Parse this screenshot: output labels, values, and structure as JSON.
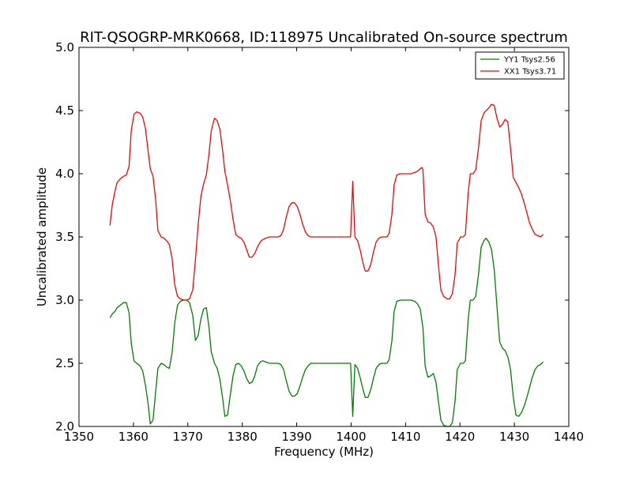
{
  "chart_data": {
    "type": "line",
    "title": "RIT-QSOGRP-MRK0668, ID:118975 Uncalibrated On-source spectrum",
    "xlabel": "Frequency (MHz)",
    "ylabel": "Uncalibrated amplitude",
    "xlim": [
      1350,
      1440
    ],
    "ylim": [
      2.0,
      5.0
    ],
    "xticks": [
      1350,
      1360,
      1370,
      1380,
      1390,
      1400,
      1410,
      1420,
      1430,
      1440
    ],
    "xtick_labels": [
      "1350",
      "1360",
      "1370",
      "1380",
      "1390",
      "1400",
      "1410",
      "1420",
      "1430",
      "1440"
    ],
    "yticks": [
      2.0,
      2.5,
      3.0,
      3.5,
      4.0,
      4.5,
      5.0
    ],
    "ytick_labels": [
      "2.0",
      "2.5",
      "3.0",
      "3.5",
      "4.0",
      "4.5",
      "5.0"
    ],
    "grid": false,
    "legend_position": "top-right",
    "series": [
      {
        "name": "YY1 Tsys2.56",
        "color": "#008000",
        "points": [
          [
            1355.7,
            2.86
          ],
          [
            1356.1,
            2.89
          ],
          [
            1356.6,
            2.91
          ],
          [
            1357.0,
            2.94
          ],
          [
            1357.6,
            2.96
          ],
          [
            1358.2,
            2.98
          ],
          [
            1358.7,
            2.98
          ],
          [
            1359.2,
            2.9
          ],
          [
            1359.6,
            2.66
          ],
          [
            1360.1,
            2.52
          ],
          [
            1360.6,
            2.5
          ],
          [
            1361.2,
            2.48
          ],
          [
            1361.7,
            2.44
          ],
          [
            1362.2,
            2.33
          ],
          [
            1362.7,
            2.18
          ],
          [
            1363.1,
            2.02
          ],
          [
            1363.6,
            2.05
          ],
          [
            1364.1,
            2.28
          ],
          [
            1364.5,
            2.46
          ],
          [
            1365.1,
            2.5
          ],
          [
            1365.6,
            2.49
          ],
          [
            1366.1,
            2.47
          ],
          [
            1366.6,
            2.46
          ],
          [
            1367.1,
            2.58
          ],
          [
            1367.6,
            2.82
          ],
          [
            1368.1,
            2.96
          ],
          [
            1368.6,
            2.99
          ],
          [
            1369.2,
            3.0
          ],
          [
            1369.8,
            3.0
          ],
          [
            1370.3,
            2.98
          ],
          [
            1370.9,
            2.88
          ],
          [
            1371.4,
            2.68
          ],
          [
            1371.9,
            2.72
          ],
          [
            1372.4,
            2.85
          ],
          [
            1372.9,
            2.93
          ],
          [
            1373.4,
            2.94
          ],
          [
            1373.9,
            2.78
          ],
          [
            1374.3,
            2.59
          ],
          [
            1374.9,
            2.5
          ],
          [
            1375.4,
            2.46
          ],
          [
            1375.9,
            2.37
          ],
          [
            1376.4,
            2.22
          ],
          [
            1376.8,
            2.08
          ],
          [
            1377.3,
            2.09
          ],
          [
            1377.8,
            2.25
          ],
          [
            1378.3,
            2.4
          ],
          [
            1378.8,
            2.49
          ],
          [
            1379.3,
            2.5
          ],
          [
            1379.8,
            2.48
          ],
          [
            1380.3,
            2.44
          ],
          [
            1380.8,
            2.38
          ],
          [
            1381.3,
            2.34
          ],
          [
            1381.8,
            2.35
          ],
          [
            1382.3,
            2.4
          ],
          [
            1382.8,
            2.48
          ],
          [
            1383.3,
            2.51
          ],
          [
            1383.8,
            2.52
          ],
          [
            1384.3,
            2.51
          ],
          [
            1385.0,
            2.5
          ],
          [
            1385.8,
            2.5
          ],
          [
            1386.6,
            2.5
          ],
          [
            1387.1,
            2.49
          ],
          [
            1387.6,
            2.45
          ],
          [
            1388.1,
            2.36
          ],
          [
            1388.6,
            2.28
          ],
          [
            1389.1,
            2.24
          ],
          [
            1389.6,
            2.24
          ],
          [
            1390.1,
            2.26
          ],
          [
            1390.6,
            2.32
          ],
          [
            1391.1,
            2.39
          ],
          [
            1391.6,
            2.45
          ],
          [
            1392.1,
            2.48
          ],
          [
            1392.6,
            2.5
          ],
          [
            1394.0,
            2.5
          ],
          [
            1396.0,
            2.5
          ],
          [
            1398.0,
            2.5
          ],
          [
            1399.5,
            2.5
          ],
          [
            1399.9,
            2.5
          ],
          [
            1400.3,
            2.08
          ],
          [
            1400.7,
            2.49
          ],
          [
            1401.2,
            2.46
          ],
          [
            1401.7,
            2.38
          ],
          [
            1402.2,
            2.29
          ],
          [
            1402.6,
            2.23
          ],
          [
            1403.1,
            2.23
          ],
          [
            1403.6,
            2.29
          ],
          [
            1404.1,
            2.38
          ],
          [
            1404.6,
            2.46
          ],
          [
            1405.1,
            2.49
          ],
          [
            1405.6,
            2.5
          ],
          [
            1406.1,
            2.5
          ],
          [
            1406.6,
            2.5
          ],
          [
            1407.0,
            2.53
          ],
          [
            1407.5,
            2.68
          ],
          [
            1407.9,
            2.91
          ],
          [
            1408.4,
            2.99
          ],
          [
            1409.0,
            3.0
          ],
          [
            1410.0,
            3.0
          ],
          [
            1411.0,
            3.0
          ],
          [
            1411.7,
            2.99
          ],
          [
            1412.2,
            2.97
          ],
          [
            1412.7,
            2.93
          ],
          [
            1413.2,
            2.78
          ],
          [
            1413.6,
            2.48
          ],
          [
            1414.1,
            2.39
          ],
          [
            1414.6,
            2.4
          ],
          [
            1415.1,
            2.42
          ],
          [
            1415.6,
            2.35
          ],
          [
            1416.1,
            2.18
          ],
          [
            1416.5,
            2.05
          ],
          [
            1417.0,
            2.01
          ],
          [
            1417.6,
            2.0
          ],
          [
            1418.1,
            2.0
          ],
          [
            1418.6,
            2.03
          ],
          [
            1419.1,
            2.2
          ],
          [
            1419.5,
            2.45
          ],
          [
            1420.1,
            2.5
          ],
          [
            1420.6,
            2.5
          ],
          [
            1421.0,
            2.52
          ],
          [
            1421.5,
            2.84
          ],
          [
            1421.9,
            3.0
          ],
          [
            1422.4,
            3.0
          ],
          [
            1422.9,
            3.03
          ],
          [
            1423.4,
            3.2
          ],
          [
            1423.9,
            3.42
          ],
          [
            1424.4,
            3.47
          ],
          [
            1424.8,
            3.49
          ],
          [
            1425.3,
            3.46
          ],
          [
            1425.8,
            3.4
          ],
          [
            1426.3,
            3.24
          ],
          [
            1426.8,
            2.95
          ],
          [
            1427.3,
            2.67
          ],
          [
            1427.8,
            2.62
          ],
          [
            1428.3,
            2.6
          ],
          [
            1428.8,
            2.55
          ],
          [
            1429.3,
            2.45
          ],
          [
            1429.8,
            2.23
          ],
          [
            1430.3,
            2.09
          ],
          [
            1430.8,
            2.08
          ],
          [
            1431.3,
            2.11
          ],
          [
            1431.8,
            2.16
          ],
          [
            1432.3,
            2.23
          ],
          [
            1432.8,
            2.31
          ],
          [
            1433.3,
            2.39
          ],
          [
            1433.8,
            2.45
          ],
          [
            1434.3,
            2.48
          ],
          [
            1434.8,
            2.49
          ],
          [
            1435.3,
            2.51
          ]
        ]
      },
      {
        "name": "XX1 Tsys3.71",
        "color": "#ff0000",
        "points": [
          [
            1355.7,
            3.59
          ],
          [
            1356.1,
            3.75
          ],
          [
            1356.6,
            3.86
          ],
          [
            1357.0,
            3.93
          ],
          [
            1357.6,
            3.96
          ],
          [
            1358.2,
            3.98
          ],
          [
            1358.7,
            3.99
          ],
          [
            1359.2,
            4.06
          ],
          [
            1359.6,
            4.34
          ],
          [
            1360.1,
            4.47
          ],
          [
            1360.6,
            4.49
          ],
          [
            1361.2,
            4.48
          ],
          [
            1361.7,
            4.45
          ],
          [
            1362.2,
            4.36
          ],
          [
            1362.7,
            4.18
          ],
          [
            1363.1,
            4.04
          ],
          [
            1363.6,
            3.98
          ],
          [
            1364.1,
            3.79
          ],
          [
            1364.5,
            3.55
          ],
          [
            1365.1,
            3.5
          ],
          [
            1365.6,
            3.49
          ],
          [
            1366.1,
            3.47
          ],
          [
            1366.6,
            3.44
          ],
          [
            1367.1,
            3.33
          ],
          [
            1367.6,
            3.12
          ],
          [
            1368.1,
            3.03
          ],
          [
            1368.6,
            3.01
          ],
          [
            1369.2,
            3.0
          ],
          [
            1369.8,
            3.0
          ],
          [
            1370.3,
            3.01
          ],
          [
            1370.9,
            3.08
          ],
          [
            1371.4,
            3.32
          ],
          [
            1371.9,
            3.6
          ],
          [
            1372.4,
            3.82
          ],
          [
            1372.9,
            3.92
          ],
          [
            1373.4,
            3.99
          ],
          [
            1373.9,
            4.16
          ],
          [
            1374.3,
            4.34
          ],
          [
            1374.9,
            4.44
          ],
          [
            1375.4,
            4.42
          ],
          [
            1375.9,
            4.35
          ],
          [
            1376.4,
            4.18
          ],
          [
            1376.8,
            4.02
          ],
          [
            1377.3,
            3.91
          ],
          [
            1377.8,
            3.79
          ],
          [
            1378.3,
            3.64
          ],
          [
            1378.8,
            3.52
          ],
          [
            1379.3,
            3.5
          ],
          [
            1379.8,
            3.49
          ],
          [
            1380.3,
            3.46
          ],
          [
            1380.8,
            3.4
          ],
          [
            1381.3,
            3.34
          ],
          [
            1381.8,
            3.34
          ],
          [
            1382.3,
            3.37
          ],
          [
            1382.8,
            3.42
          ],
          [
            1383.3,
            3.46
          ],
          [
            1383.8,
            3.48
          ],
          [
            1384.3,
            3.49
          ],
          [
            1385.0,
            3.5
          ],
          [
            1385.8,
            3.5
          ],
          [
            1386.6,
            3.5
          ],
          [
            1387.1,
            3.51
          ],
          [
            1387.6,
            3.56
          ],
          [
            1388.1,
            3.66
          ],
          [
            1388.6,
            3.74
          ],
          [
            1389.1,
            3.77
          ],
          [
            1389.6,
            3.77
          ],
          [
            1390.1,
            3.74
          ],
          [
            1390.6,
            3.68
          ],
          [
            1391.1,
            3.6
          ],
          [
            1391.6,
            3.54
          ],
          [
            1392.1,
            3.51
          ],
          [
            1392.6,
            3.5
          ],
          [
            1394.0,
            3.5
          ],
          [
            1396.0,
            3.5
          ],
          [
            1398.0,
            3.5
          ],
          [
            1399.5,
            3.5
          ],
          [
            1399.9,
            3.5
          ],
          [
            1400.3,
            3.94
          ],
          [
            1400.7,
            3.5
          ],
          [
            1401.2,
            3.47
          ],
          [
            1401.7,
            3.39
          ],
          [
            1402.2,
            3.29
          ],
          [
            1402.6,
            3.23
          ],
          [
            1403.1,
            3.23
          ],
          [
            1403.6,
            3.28
          ],
          [
            1404.1,
            3.38
          ],
          [
            1404.6,
            3.46
          ],
          [
            1405.1,
            3.49
          ],
          [
            1405.6,
            3.5
          ],
          [
            1406.1,
            3.5
          ],
          [
            1406.6,
            3.5
          ],
          [
            1407.0,
            3.53
          ],
          [
            1407.5,
            3.68
          ],
          [
            1407.9,
            3.91
          ],
          [
            1408.4,
            3.99
          ],
          [
            1409.0,
            4.0
          ],
          [
            1410.0,
            4.0
          ],
          [
            1411.0,
            4.0
          ],
          [
            1411.7,
            4.01
          ],
          [
            1412.2,
            4.02
          ],
          [
            1412.7,
            4.04
          ],
          [
            1413.0,
            4.05
          ],
          [
            1413.2,
            4.03
          ],
          [
            1413.6,
            3.68
          ],
          [
            1414.1,
            3.62
          ],
          [
            1414.6,
            3.61
          ],
          [
            1415.1,
            3.58
          ],
          [
            1415.6,
            3.5
          ],
          [
            1416.1,
            3.25
          ],
          [
            1416.5,
            3.08
          ],
          [
            1417.0,
            3.03
          ],
          [
            1417.6,
            3.01
          ],
          [
            1418.1,
            3.01
          ],
          [
            1418.6,
            3.05
          ],
          [
            1419.1,
            3.2
          ],
          [
            1419.5,
            3.45
          ],
          [
            1420.1,
            3.5
          ],
          [
            1420.6,
            3.5
          ],
          [
            1421.0,
            3.52
          ],
          [
            1421.5,
            3.84
          ],
          [
            1421.9,
            4.0
          ],
          [
            1422.4,
            4.0
          ],
          [
            1422.9,
            4.03
          ],
          [
            1423.4,
            4.2
          ],
          [
            1423.9,
            4.42
          ],
          [
            1424.4,
            4.48
          ],
          [
            1424.8,
            4.5
          ],
          [
            1425.3,
            4.52
          ],
          [
            1425.8,
            4.55
          ],
          [
            1426.3,
            4.54
          ],
          [
            1426.8,
            4.44
          ],
          [
            1427.3,
            4.37
          ],
          [
            1427.8,
            4.39
          ],
          [
            1428.3,
            4.43
          ],
          [
            1428.8,
            4.41
          ],
          [
            1429.3,
            4.2
          ],
          [
            1429.8,
            3.97
          ],
          [
            1430.3,
            3.93
          ],
          [
            1430.8,
            3.89
          ],
          [
            1431.3,
            3.84
          ],
          [
            1431.8,
            3.77
          ],
          [
            1432.3,
            3.69
          ],
          [
            1432.8,
            3.61
          ],
          [
            1433.3,
            3.56
          ],
          [
            1433.8,
            3.52
          ],
          [
            1434.3,
            3.51
          ],
          [
            1434.8,
            3.5
          ],
          [
            1435.3,
            3.52
          ]
        ]
      }
    ]
  }
}
